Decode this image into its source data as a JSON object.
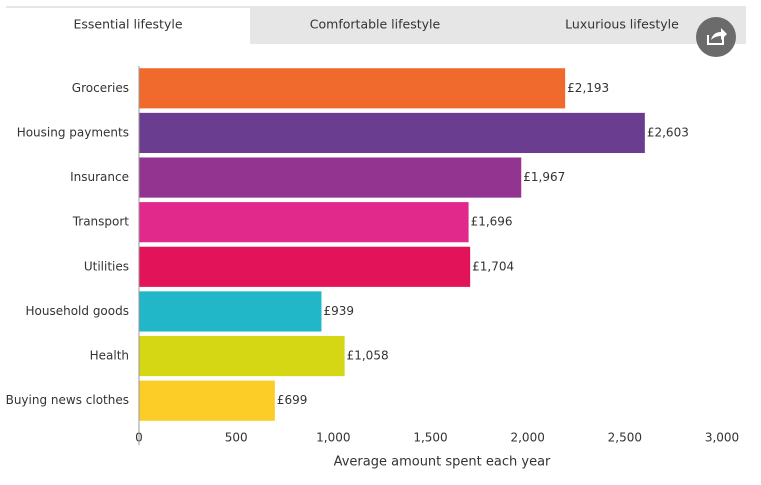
{
  "tabs": [
    "Essential lifestyle",
    "Comfortable lifestyle",
    "Luxurious lifestyle"
  ],
  "chart_data": {
    "type": "bar",
    "orientation": "horizontal",
    "categories": [
      "Groceries",
      "Housing payments",
      "Insurance",
      "Transport",
      "Utilities",
      "Household goods",
      "Health",
      "Buying news clothes"
    ],
    "values": [
      2193,
      2603,
      1967,
      1696,
      1704,
      939,
      1058,
      699
    ],
    "value_labels": [
      "£2,193",
      "£2,603",
      "£1,967",
      "£1,696",
      "£1,704",
      "£939",
      "£1,058",
      "£699"
    ],
    "colors": [
      "#f06a2d",
      "#6a3d91",
      "#933590",
      "#e0298a",
      "#e3135a",
      "#22b6c9",
      "#d5d714",
      "#fccc27"
    ],
    "xlabel": "Average amount spent each year",
    "xlim": [
      0,
      3000
    ],
    "xticks": [
      0,
      500,
      {
        "value": 1000,
        "label": "1,000"
      },
      {
        "value": 1500,
        "label": "1,500"
      },
      {
        "value": 2000,
        "label": "2,000"
      },
      {
        "value": 2500,
        "label": "2,500"
      },
      {
        "value": 3000,
        "label": "3,000"
      }
    ],
    "grid": false
  }
}
